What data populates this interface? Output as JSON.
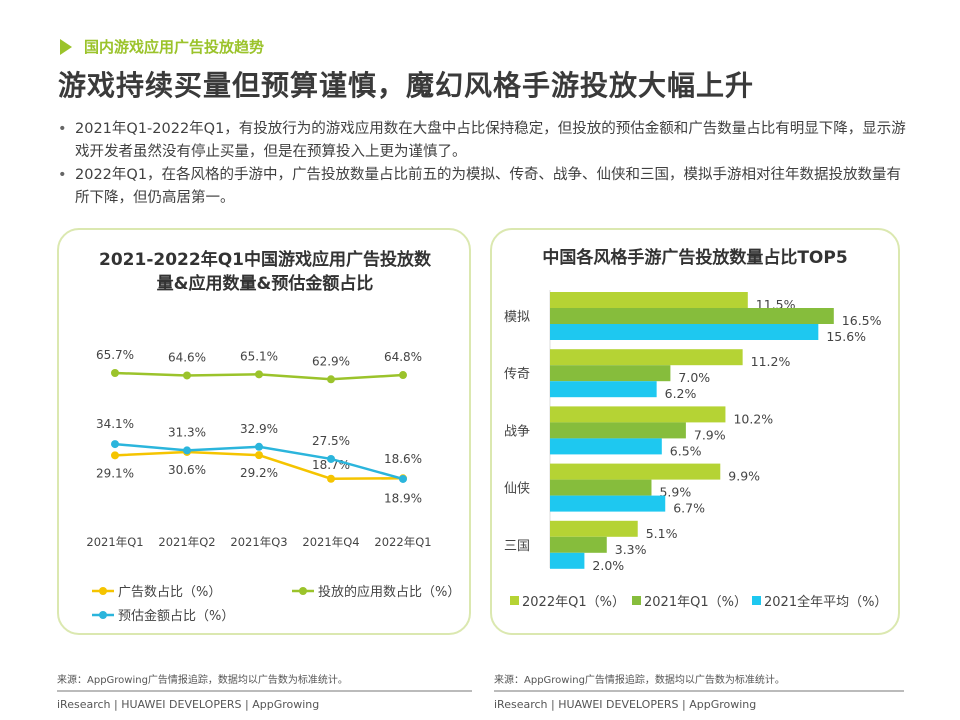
{
  "section_label": "国内游戏应用广告投放趋势",
  "headline": "游戏持续买量但预算谨慎，魔幻风格手游投放大幅上升",
  "bullets": [
    "2021年Q1-2022年Q1，有投放行为的游戏应用数在大盘中占比保持稳定，但投放的预估金额和广告数量占比有明显下降，显示游戏开发者虽然没有停止买量，但是在预算投入上更为谨慎了。",
    "2022年Q1，在各风格的手游中，广告投放数量占比前五的为模拟、传奇、战争、仙侠和三国，模拟手游相对往年数据投放数量有所下降，但仍高居第一。"
  ],
  "source": "来源：AppGrowing广告情报追踪，数据均以广告数为标准统计。",
  "footer": "iResearch | HUAWEI DEVELOPERS | AppGrowing",
  "chart_data": [
    {
      "type": "line",
      "title": "2021-2022年Q1中国游戏应用广告投放数量&应用数量&预估金额占比",
      "title_lines": [
        "2021-2022年Q1中国游戏应用广告投放数",
        "量&应用数量&预估金额占比"
      ],
      "categories": [
        "2021年Q1",
        "2021年Q2",
        "2021年Q3",
        "2021年Q4",
        "2022年Q1"
      ],
      "series": [
        {
          "name": "广告数占比（%）",
          "color": "#f5c400",
          "values": [
            29.1,
            30.6,
            29.2,
            18.7,
            18.9
          ]
        },
        {
          "name": "投放的应用数占比（%）",
          "color": "#9bc32b",
          "values": [
            65.7,
            64.6,
            65.1,
            62.9,
            64.8
          ]
        },
        {
          "name": "预估金额占比（%）",
          "color": "#2bb5dc",
          "values": [
            34.1,
            31.3,
            32.9,
            27.5,
            18.6
          ]
        }
      ],
      "legend": "bottom",
      "grid": false
    },
    {
      "type": "bar",
      "orientation": "horizontal",
      "title": "中国各风格手游广告投放数量占比TOP5",
      "categories": [
        "模拟",
        "传奇",
        "战争",
        "仙侠",
        "三国"
      ],
      "series": [
        {
          "name": "2022年Q1（%）",
          "color": "#b5d334",
          "values": [
            11.5,
            11.2,
            10.2,
            9.9,
            5.1
          ]
        },
        {
          "name": "2021年Q1（%）",
          "color": "#86bd3c",
          "values": [
            16.5,
            7.0,
            7.9,
            5.9,
            3.3
          ]
        },
        {
          "name": "2021全年平均（%）",
          "color": "#1ec8f0",
          "values": [
            15.6,
            6.2,
            6.5,
            6.7,
            2.0
          ]
        }
      ],
      "legend": "bottom",
      "grid": false
    }
  ]
}
